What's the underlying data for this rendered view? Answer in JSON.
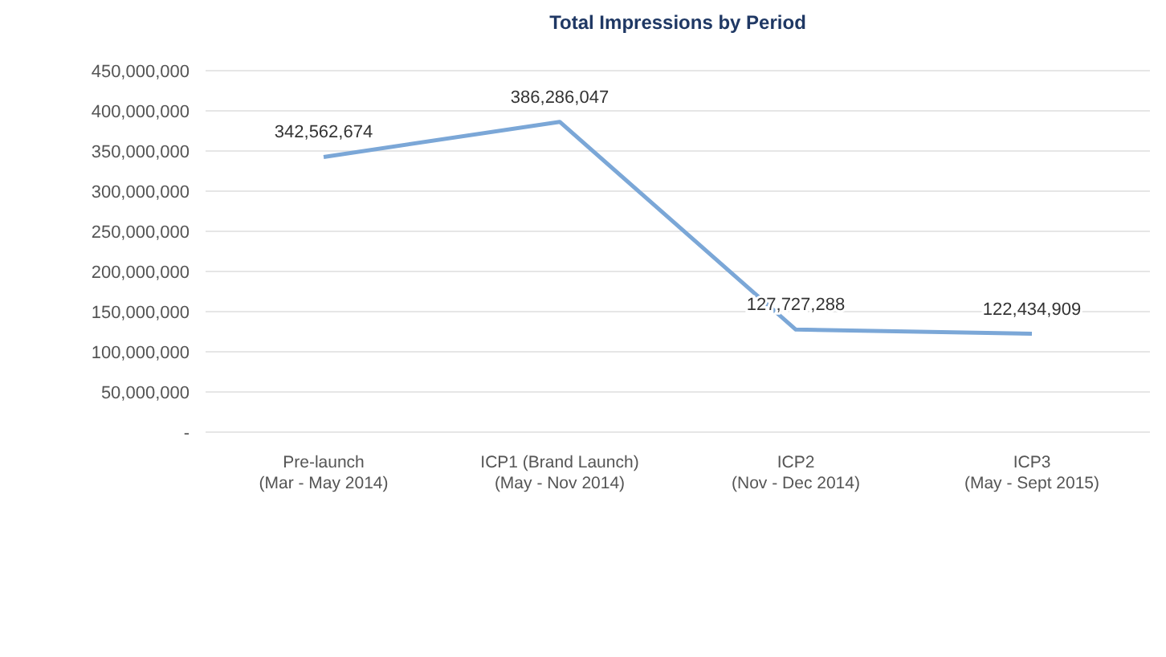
{
  "chart_data": {
    "type": "line",
    "title": "Total Impressions by Period",
    "categories": [
      "Pre-launch\n(Mar - May 2014)",
      "ICP1 (Brand Launch)\n(May - Nov 2014)",
      "ICP2\n(Nov - Dec 2014)",
      "ICP3\n(May - Sept 2015)"
    ],
    "series": [
      {
        "color": "#7ba7d7",
        "values": [
          342562674,
          386286047,
          127727288,
          122434909
        ],
        "value_labels": [
          "342,562,674",
          "386,286,047",
          "127,727,288",
          "122,434,909"
        ]
      }
    ],
    "ylim": [
      0,
      450000000
    ],
    "yticks": [
      {
        "value": 0,
        "label": "-"
      },
      {
        "value": 50000000,
        "label": "50,000,000"
      },
      {
        "value": 100000000,
        "label": "100,000,000"
      },
      {
        "value": 150000000,
        "label": "150,000,000"
      },
      {
        "value": 200000000,
        "label": "200,000,000"
      },
      {
        "value": 250000000,
        "label": "250,000,000"
      },
      {
        "value": 300000000,
        "label": "300,000,000"
      },
      {
        "value": 350000000,
        "label": "350,000,000"
      },
      {
        "value": 400000000,
        "label": "400,000,000"
      },
      {
        "value": 450000000,
        "label": "450,000,000"
      }
    ],
    "grid": "y",
    "marker": "none",
    "line_style": "solid"
  }
}
